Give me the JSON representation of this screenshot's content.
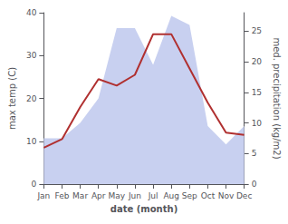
{
  "chart_data": {
    "type": "line",
    "categories": [
      "Jan",
      "Feb",
      "Mar",
      "Apr",
      "May",
      "Jun",
      "Jul",
      "Aug",
      "Sep",
      "Oct",
      "Nov",
      "Dec"
    ],
    "xlabel": "date (month)",
    "ylabel": "max temp (C)",
    "y2label": "med. precipitation (kg/m2)",
    "series": [
      {
        "type": "area",
        "axis": "y2",
        "color": "#c8d0f0",
        "values": [
          7.5,
          7.5,
          10.0,
          14.0,
          25.5,
          25.5,
          19.5,
          27.5,
          26.0,
          9.5,
          6.5,
          9.5
        ]
      },
      {
        "type": "line",
        "color": "#b03030",
        "values": [
          8.5,
          10.5,
          18.0,
          24.5,
          23.0,
          25.5,
          35.0,
          35.0,
          27.0,
          19.0,
          12.0,
          11.5
        ]
      }
    ],
    "ylim": [
      0,
      40
    ],
    "yticks": [
      0,
      10,
      20,
      30,
      40
    ],
    "y2lim": [
      0,
      28
    ],
    "y2ticks": [
      0,
      5,
      10,
      15,
      20,
      25
    ],
    "grid": false
  }
}
